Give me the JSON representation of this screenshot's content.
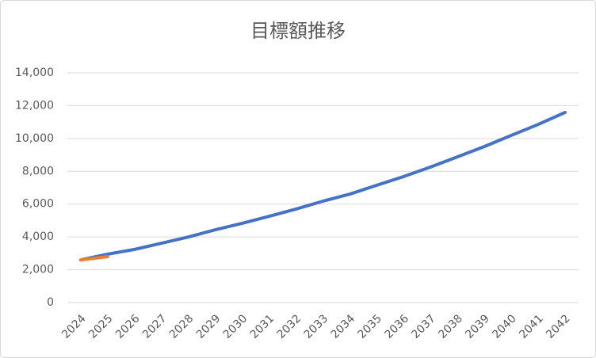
{
  "chart_data": {
    "type": "line",
    "title": "目標額推移",
    "categories": [
      "2024",
      "2025",
      "2026",
      "2027",
      "2028",
      "2029",
      "2030",
      "2031",
      "2032",
      "2033",
      "2034",
      "2035",
      "2036",
      "2037",
      "2038",
      "2039",
      "2040",
      "2041",
      "2042"
    ],
    "series": [
      {
        "color": "#4472c4",
        "values": [
          2600,
          2950,
          3240,
          3620,
          4000,
          4440,
          4830,
          5260,
          5700,
          6180,
          6610,
          7150,
          7680,
          8260,
          8880,
          9510,
          10190,
          10860,
          11590
        ]
      },
      {
        "color": "#ed7d31",
        "values": [
          2600,
          2800,
          null,
          null,
          null,
          null,
          null,
          null,
          null,
          null,
          null,
          null,
          null,
          null,
          null,
          null,
          null,
          null,
          null
        ]
      }
    ],
    "ylim": [
      0,
      14000
    ],
    "yticks": [
      0,
      {
        "value": 2000,
        "label": "2,000"
      },
      {
        "value": 4000,
        "label": "4,000"
      },
      {
        "value": 6000,
        "label": "6,000"
      },
      {
        "value": 8000,
        "label": "8,000"
      },
      {
        "value": 10000,
        "label": "10,000"
      },
      {
        "value": 12000,
        "label": "12,000"
      },
      {
        "value": 14000,
        "label": "14,000"
      }
    ],
    "grid": true
  }
}
